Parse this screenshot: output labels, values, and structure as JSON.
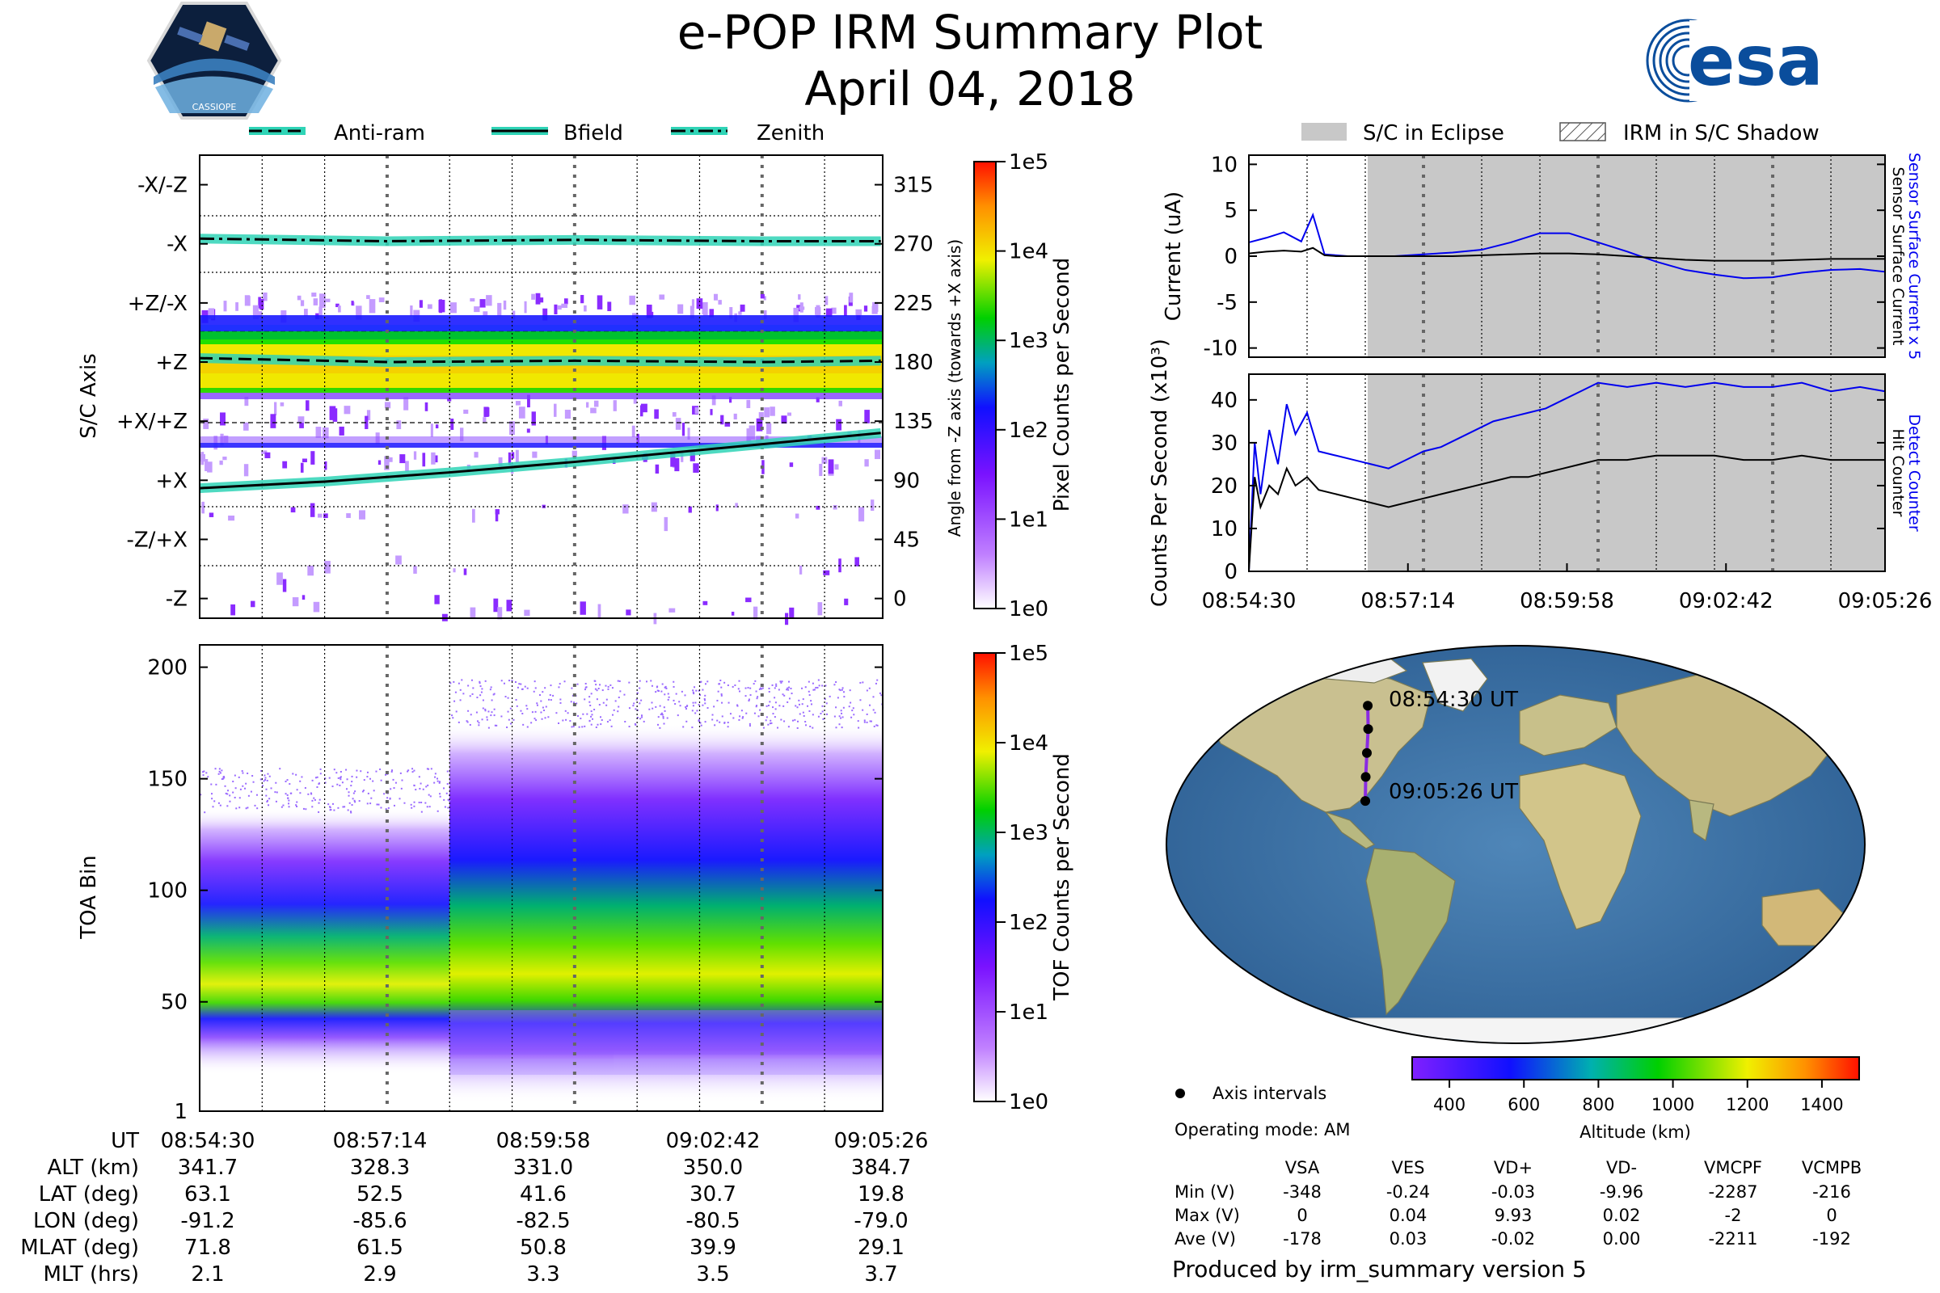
{
  "header": {
    "title": "e-POP IRM Summary Plot",
    "date": "April 04, 2018",
    "esa_logo_text": "esa",
    "cassiope_logo_text": "CASSIOPE"
  },
  "colors": {
    "anti_ram": "#2fd4b6",
    "zenith": "#2fd4b6",
    "bfield": "#2fd4b6",
    "sensor_surface_current_x5": "#0000ee",
    "detect_counter": "#0000ee",
    "eclipse": "#c8c8c8"
  },
  "legend_top": {
    "items": [
      "Anti-ram",
      "Bfield",
      "Zenith"
    ]
  },
  "legend_right": {
    "items": [
      "S/C in Eclipse",
      "IRM in S/C Shadow"
    ]
  },
  "chart_data": [
    {
      "id": "sc_axis_spectrogram",
      "type": "heatmap",
      "ylabel": "S/C Axis",
      "y_ticks_left": [
        "-X/-Z",
        "-X",
        "+Z/-X",
        "+Z",
        "+X/+Z",
        "+X",
        "-Z/+X",
        "-Z"
      ],
      "y2label": "Angle from -Z axis (towards +X axis)",
      "y2_ticks": [
        315,
        270,
        225,
        180,
        135,
        90,
        45,
        0
      ],
      "y2lim": [
        -15,
        337.5
      ],
      "xlim": [
        "08:54:30",
        "09:05:26"
      ],
      "colorbar_label": "Pixel Counts per Second",
      "colorbar_ticks": [
        "1e0",
        "1e1",
        "1e2",
        "1e3",
        "1e4",
        "1e5"
      ],
      "series": [
        {
          "name": "Zenith",
          "x_min": [
            0,
            3,
            6,
            9,
            10.9
          ],
          "angle": [
            274,
            272,
            273,
            272,
            272
          ]
        },
        {
          "name": "Anti-ram",
          "x_min": [
            0,
            3,
            6,
            9,
            10.9
          ],
          "angle": [
            183,
            180,
            181,
            180,
            181
          ]
        },
        {
          "name": "Bfield",
          "x_min": [
            0,
            2,
            4,
            6,
            8,
            10.9
          ],
          "angle": [
            84,
            89,
            96,
            104,
            113,
            126
          ]
        }
      ]
    },
    {
      "id": "toa_spectrogram",
      "type": "heatmap",
      "ylabel": "TOA Bin",
      "y_ticks": [
        "200",
        "150",
        "100",
        "50",
        "1"
      ],
      "ylim": [
        1,
        210
      ],
      "xlim": [
        "08:54:30",
        "09:05:26"
      ],
      "colorbar_label": "TOF Counts per Second",
      "colorbar_ticks": [
        "1e0",
        "1e1",
        "1e2",
        "1e3",
        "1e4",
        "1e5"
      ]
    },
    {
      "id": "current",
      "type": "line",
      "ylabel": "Current (uA)",
      "right_label_blue": "Sensor Surface Current x 5",
      "right_label_black": "Sensor Surface Current",
      "y_ticks": [
        "10",
        "5",
        "0",
        "-5",
        "-10"
      ],
      "ylim": [
        -11,
        11
      ],
      "x_min": [
        0,
        0.3,
        0.6,
        0.9,
        1.1,
        1.3,
        1.5,
        1.7,
        2.0,
        2.5,
        3.0,
        3.5,
        4.0,
        4.5,
        5.0,
        5.5,
        6.0,
        6.5,
        7.0,
        7.5,
        8.0,
        8.5,
        9.0,
        9.5,
        10.0,
        10.5,
        10.93
      ],
      "series": [
        {
          "name": "Sensor Surface Current x 5",
          "values": [
            1.5,
            2.0,
            2.6,
            1.6,
            4.5,
            0.2,
            0.1,
            0.0,
            0.0,
            0.0,
            0.2,
            0.4,
            0.7,
            1.5,
            2.5,
            2.5,
            1.5,
            0.5,
            -0.6,
            -1.5,
            -2.0,
            -2.4,
            -2.3,
            -1.8,
            -1.5,
            -1.4,
            -1.7
          ]
        },
        {
          "name": "Sensor Surface Current",
          "values": [
            0.3,
            0.5,
            0.6,
            0.5,
            0.9,
            0.1,
            0.0,
            0.0,
            0.0,
            0.0,
            0.0,
            0.0,
            0.1,
            0.2,
            0.3,
            0.3,
            0.2,
            0.0,
            -0.2,
            -0.4,
            -0.5,
            -0.5,
            -0.5,
            -0.4,
            -0.3,
            -0.3,
            -0.3
          ]
        }
      ],
      "eclipse_start": "08:56:50",
      "eclipse_end": "09:05:26"
    },
    {
      "id": "counts",
      "type": "line",
      "ylabel": "Counts Per Second (x10³)",
      "right_label_blue": "Detect Counter",
      "right_label_black": "Hit Counter",
      "y_ticks": [
        "40",
        "30",
        "20",
        "10",
        "0"
      ],
      "ylim": [
        0,
        46
      ],
      "xlabel_ticks": [
        "08:54:30",
        "08:57:14",
        "08:59:58",
        "09:02:42",
        "09:05:26"
      ],
      "x_min": [
        0,
        0.1,
        0.2,
        0.35,
        0.5,
        0.65,
        0.8,
        1.0,
        1.2,
        1.5,
        1.8,
        2.1,
        2.4,
        2.7,
        3.0,
        3.3,
        3.6,
        3.9,
        4.2,
        4.5,
        4.8,
        5.1,
        5.4,
        5.7,
        6.0,
        6.5,
        7.0,
        7.5,
        8.0,
        8.5,
        9.0,
        9.5,
        10.0,
        10.5,
        10.93
      ],
      "series": [
        {
          "name": "Detect Counter",
          "values": [
            0,
            30,
            18,
            33,
            25,
            39,
            32,
            37,
            28,
            27,
            26,
            25,
            24,
            26,
            28,
            29,
            31,
            33,
            35,
            36,
            37,
            38,
            40,
            42,
            44,
            43,
            44,
            43,
            44,
            43,
            43,
            44,
            42,
            43,
            42
          ]
        },
        {
          "name": "Hit Counter",
          "values": [
            0,
            22,
            15,
            20,
            18,
            24,
            20,
            22,
            19,
            18,
            17,
            16,
            15,
            16,
            17,
            18,
            19,
            20,
            21,
            22,
            22,
            23,
            24,
            25,
            26,
            26,
            27,
            27,
            27,
            26,
            26,
            27,
            26,
            26,
            26
          ]
        }
      ]
    },
    {
      "id": "altitude_colorbar",
      "type": "heatmap",
      "xlabel": "Altitude (km)",
      "x_ticks": [
        "400",
        "600",
        "800",
        "1000",
        "1200",
        "1400"
      ],
      "xlim": [
        300,
        1500
      ]
    }
  ],
  "map": {
    "start_label": "08:54:30 UT",
    "end_label": "09:05:26 UT",
    "points_lon": [
      -91.2,
      -85.6,
      -82.5,
      -80.5,
      -79.0
    ],
    "points_lat": [
      63.1,
      52.5,
      41.6,
      30.7,
      19.8
    ],
    "legend_label": "Axis intervals",
    "operating_mode": "Operating mode: AM"
  },
  "ephemeris": {
    "rows": [
      {
        "label": "UT",
        "values": [
          "08:54:30",
          "08:57:14",
          "08:59:58",
          "09:02:42",
          "09:05:26"
        ]
      },
      {
        "label": "ALT (km)",
        "values": [
          "341.7",
          "328.3",
          "331.0",
          "350.0",
          "384.7"
        ]
      },
      {
        "label": "LAT (deg)",
        "values": [
          "63.1",
          "52.5",
          "41.6",
          "30.7",
          "19.8"
        ]
      },
      {
        "label": "LON (deg)",
        "values": [
          "-91.2",
          "-85.6",
          "-82.5",
          "-80.5",
          "-79.0"
        ]
      },
      {
        "label": "MLAT (deg)",
        "values": [
          "71.8",
          "61.5",
          "50.8",
          "39.9",
          "29.1"
        ]
      },
      {
        "label": "MLT (hrs)",
        "values": [
          "2.1",
          "2.9",
          "3.3",
          "3.5",
          "3.7"
        ]
      }
    ]
  },
  "voltages": {
    "columns": [
      "VSA",
      "VES",
      "VD+",
      "VD-",
      "VMCPF",
      "VCMPB"
    ],
    "rows": [
      {
        "label": "Min (V)",
        "values": [
          "-348",
          "-0.24",
          "-0.03",
          "-9.96",
          "-2287",
          "-216"
        ]
      },
      {
        "label": "Max (V)",
        "values": [
          "0",
          "0.04",
          "9.93",
          "0.02",
          "-2",
          "0"
        ]
      },
      {
        "label": "Ave (V)",
        "values": [
          "-178",
          "0.03",
          "-0.02",
          "0.00",
          "-2211",
          "-192"
        ]
      }
    ]
  },
  "footer": "Produced by irm_summary version 5"
}
